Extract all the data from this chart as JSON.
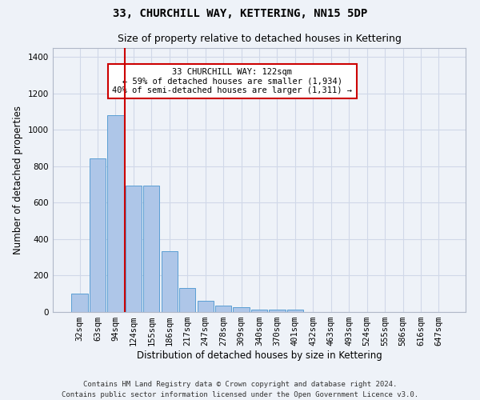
{
  "title": "33, CHURCHILL WAY, KETTERING, NN15 5DP",
  "subtitle": "Size of property relative to detached houses in Kettering",
  "xlabel": "Distribution of detached houses by size in Kettering",
  "ylabel": "Number of detached properties",
  "categories": [
    "32sqm",
    "63sqm",
    "94sqm",
    "124sqm",
    "155sqm",
    "186sqm",
    "217sqm",
    "247sqm",
    "278sqm",
    "309sqm",
    "340sqm",
    "370sqm",
    "401sqm",
    "432sqm",
    "463sqm",
    "493sqm",
    "524sqm",
    "555sqm",
    "586sqm",
    "616sqm",
    "647sqm"
  ],
  "values": [
    100,
    845,
    1080,
    695,
    695,
    335,
    130,
    60,
    35,
    25,
    15,
    15,
    15,
    0,
    0,
    0,
    0,
    0,
    0,
    0,
    0
  ],
  "bar_color": "#aec6e8",
  "bar_edge_color": "#5a9fd4",
  "vline_x_idx": 2.5,
  "vline_color": "#cc0000",
  "annotation_text": "33 CHURCHILL WAY: 122sqm\n← 59% of detached houses are smaller (1,934)\n40% of semi-detached houses are larger (1,311) →",
  "annotation_box_color": "#ffffff",
  "annotation_box_edge": "#cc0000",
  "ylim": [
    0,
    1450
  ],
  "yticks": [
    0,
    200,
    400,
    600,
    800,
    1000,
    1200,
    1400
  ],
  "grid_color": "#d0d8e8",
  "bg_color": "#eef2f8",
  "footer": "Contains HM Land Registry data © Crown copyright and database right 2024.\nContains public sector information licensed under the Open Government Licence v3.0.",
  "title_fontsize": 10,
  "subtitle_fontsize": 9,
  "xlabel_fontsize": 8.5,
  "ylabel_fontsize": 8.5,
  "tick_fontsize": 7.5,
  "footer_fontsize": 6.5,
  "annot_fontsize": 7.5
}
